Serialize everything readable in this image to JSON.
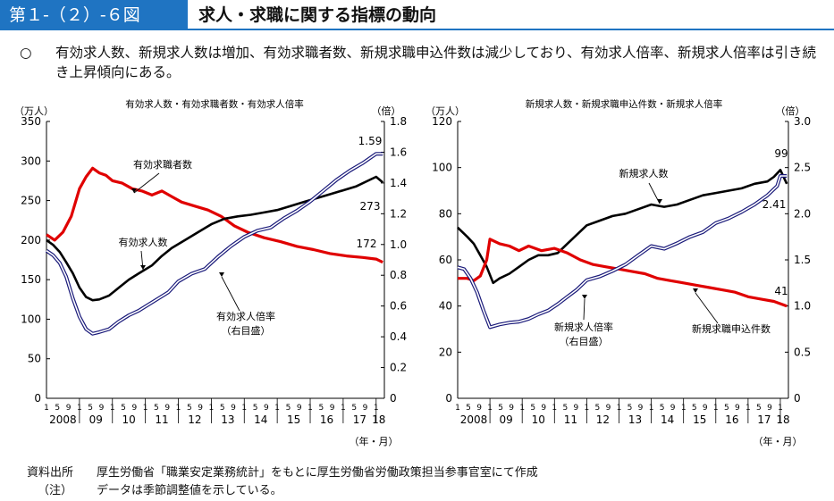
{
  "header": {
    "figure_label": "第１-（２）-６図",
    "title": "求人・求職に関する指標の動向"
  },
  "summary": {
    "bullet": "○",
    "text": "有効求人数、新規求人数は増加、有効求職者数、新規求職申込件数は減少しており、有効求人倍率、新規求人倍率は引き続き上昇傾向にある。"
  },
  "chart_data": [
    {
      "type": "line",
      "title": "有効求人数・有効求職者数・有効求人倍率",
      "ylabel_left": "（万人）",
      "ylabel_right": "（倍）",
      "xlabel": "（年・月）",
      "ylim_left": [
        0,
        350
      ],
      "yticks_left": [
        "0",
        "50",
        "100",
        "150",
        "200",
        "250",
        "300",
        "350"
      ],
      "ylim_right": [
        0,
        1.8
      ],
      "yticks_right": [
        "0",
        "0.2",
        "0.4",
        "0.6",
        "0.8",
        "1.0",
        "1.2",
        "1.4",
        "1.6",
        "1.8"
      ],
      "year_labels": [
        "2008",
        "09",
        "10",
        "11",
        "12",
        "13",
        "14",
        "15",
        "16",
        "17",
        "18"
      ],
      "month_labels": [
        "1",
        "5",
        "9"
      ],
      "series": [
        {
          "name": "有効求職者数",
          "axis": "left",
          "color": "#e00000",
          "x": [
            2008.0,
            2008.25,
            2008.5,
            2008.75,
            2009.0,
            2009.2,
            2009.4,
            2009.6,
            2009.8,
            2010.0,
            2010.3,
            2010.6,
            2010.9,
            2011.2,
            2011.5,
            2011.8,
            2012.1,
            2012.5,
            2012.9,
            2013.3,
            2013.7,
            2014.1,
            2014.6,
            2015.1,
            2015.6,
            2016.1,
            2016.6,
            2017.1,
            2017.6,
            2018.0,
            2018.2
          ],
          "values": [
            207,
            200,
            210,
            230,
            265,
            280,
            291,
            285,
            282,
            275,
            272,
            265,
            262,
            257,
            262,
            255,
            248,
            243,
            238,
            230,
            218,
            210,
            203,
            198,
            192,
            188,
            183,
            180,
            178,
            176,
            172
          ]
        },
        {
          "name": "有効求人数",
          "axis": "left",
          "color": "#000000",
          "x": [
            2008.0,
            2008.2,
            2008.4,
            2008.6,
            2008.8,
            2009.0,
            2009.2,
            2009.4,
            2009.6,
            2009.9,
            2010.2,
            2010.5,
            2010.8,
            2011.2,
            2011.5,
            2011.8,
            2012.2,
            2012.6,
            2013.0,
            2013.4,
            2013.8,
            2014.2,
            2014.6,
            2015.0,
            2015.4,
            2015.8,
            2016.2,
            2016.6,
            2017.0,
            2017.4,
            2017.8,
            2018.0,
            2018.2
          ],
          "values": [
            200,
            194,
            185,
            172,
            158,
            140,
            128,
            124,
            125,
            130,
            140,
            150,
            158,
            168,
            180,
            190,
            200,
            210,
            220,
            227,
            230,
            232,
            235,
            238,
            243,
            248,
            253,
            258,
            263,
            268,
            276,
            280,
            273
          ]
        },
        {
          "name": "有効求人倍率",
          "axis": "right",
          "color": "#1a1a7a",
          "x": [
            2008.0,
            2008.2,
            2008.4,
            2008.6,
            2008.8,
            2009.0,
            2009.2,
            2009.4,
            2009.6,
            2009.9,
            2010.2,
            2010.5,
            2010.8,
            2011.1,
            2011.4,
            2011.7,
            2012.0,
            2012.4,
            2012.8,
            2013.2,
            2013.6,
            2014.0,
            2014.4,
            2014.8,
            2015.2,
            2015.6,
            2016.0,
            2016.4,
            2016.8,
            2017.2,
            2017.6,
            2018.0,
            2018.2
          ],
          "values": [
            0.96,
            0.93,
            0.88,
            0.79,
            0.65,
            0.53,
            0.45,
            0.42,
            0.43,
            0.45,
            0.5,
            0.54,
            0.57,
            0.61,
            0.65,
            0.69,
            0.76,
            0.81,
            0.84,
            0.92,
            0.99,
            1.05,
            1.09,
            1.11,
            1.17,
            1.22,
            1.28,
            1.35,
            1.42,
            1.48,
            1.53,
            1.59,
            1.59
          ]
        }
      ],
      "data_labels": [
        "1.59",
        "273",
        "172"
      ],
      "annotations": [
        "有効求職者数",
        "有効求人数",
        "有効求人倍率",
        "（右目盛）"
      ]
    },
    {
      "type": "line",
      "title": "新規求人数・新規求職申込件数・新規求人倍率",
      "ylabel_left": "（万人）",
      "ylabel_right": "（倍）",
      "xlabel": "（年・月）",
      "ylim_left": [
        0,
        120
      ],
      "yticks_left": [
        "0",
        "20",
        "40",
        "60",
        "80",
        "100",
        "120"
      ],
      "ylim_right": [
        0,
        3.0
      ],
      "yticks_right": [
        "0",
        "0.5",
        "1.0",
        "1.5",
        "2.0",
        "2.5",
        "3.0"
      ],
      "year_labels": [
        "2008",
        "09",
        "10",
        "11",
        "12",
        "13",
        "14",
        "15",
        "16",
        "17",
        "18"
      ],
      "month_labels": [
        "1",
        "5",
        "9"
      ],
      "series": [
        {
          "name": "新規求人数",
          "axis": "left",
          "color": "#000000",
          "x": [
            2008.0,
            2008.3,
            2008.5,
            2008.7,
            2008.9,
            2009.1,
            2009.3,
            2009.6,
            2009.9,
            2010.2,
            2010.5,
            2010.8,
            2011.1,
            2011.4,
            2011.7,
            2012.0,
            2012.4,
            2012.8,
            2013.2,
            2013.6,
            2014.0,
            2014.4,
            2014.8,
            2015.2,
            2015.6,
            2016.0,
            2016.4,
            2016.8,
            2017.2,
            2017.6,
            2017.8,
            2018.0,
            2018.2
          ],
          "values": [
            74,
            70,
            67,
            62,
            57,
            50,
            52,
            54,
            57,
            60,
            62,
            62,
            63,
            67,
            71,
            75,
            77,
            79,
            80,
            82,
            84,
            83,
            84,
            86,
            88,
            89,
            90,
            91,
            93,
            94,
            96,
            99,
            93
          ]
        },
        {
          "name": "新規求職申込件数",
          "axis": "left",
          "color": "#e00000",
          "x": [
            2008.0,
            2008.3,
            2008.5,
            2008.7,
            2008.9,
            2009.0,
            2009.3,
            2009.6,
            2009.9,
            2010.2,
            2010.6,
            2011.0,
            2011.4,
            2011.8,
            2012.2,
            2012.6,
            2013.0,
            2013.4,
            2013.8,
            2014.2,
            2014.6,
            2015.0,
            2015.4,
            2015.8,
            2016.2,
            2016.6,
            2017.0,
            2017.4,
            2017.8,
            2018.0,
            2018.2
          ],
          "values": [
            52,
            52,
            51,
            53,
            60,
            69,
            67,
            66,
            64,
            66,
            64,
            65,
            63,
            60,
            58,
            57,
            56,
            55,
            54,
            52,
            51,
            50,
            49,
            48,
            47,
            46,
            44,
            43,
            42,
            41,
            40
          ]
        },
        {
          "name": "新規求人倍率",
          "axis": "right",
          "color": "#1a1a7a",
          "x": [
            2008.0,
            2008.2,
            2008.4,
            2008.6,
            2008.8,
            2009.0,
            2009.3,
            2009.6,
            2009.9,
            2010.2,
            2010.5,
            2010.8,
            2011.1,
            2011.4,
            2011.7,
            2012.0,
            2012.4,
            2012.8,
            2013.2,
            2013.6,
            2014.0,
            2014.4,
            2014.8,
            2015.2,
            2015.6,
            2016.0,
            2016.4,
            2016.8,
            2017.2,
            2017.6,
            2017.9,
            2018.0,
            2018.2
          ],
          "values": [
            1.42,
            1.4,
            1.3,
            1.15,
            0.95,
            0.77,
            0.8,
            0.82,
            0.83,
            0.86,
            0.91,
            0.95,
            1.02,
            1.1,
            1.18,
            1.28,
            1.32,
            1.38,
            1.45,
            1.55,
            1.65,
            1.62,
            1.68,
            1.75,
            1.8,
            1.9,
            1.95,
            2.02,
            2.1,
            2.2,
            2.3,
            2.41,
            2.41
          ]
        }
      ],
      "data_labels": [
        "99",
        "2.41",
        "41"
      ],
      "annotations": [
        "新規求人数",
        "新規求人倍率",
        "（右目盛）",
        "新規求職申込件数"
      ]
    }
  ],
  "footer": {
    "source_label": "資料出所",
    "source_text": "厚生労働省「職業安定業務統計」をもとに厚生労働省労働政策担当参事官室にて作成",
    "note_label": "（注）",
    "note_text": "データは季節調整値を示している。"
  }
}
